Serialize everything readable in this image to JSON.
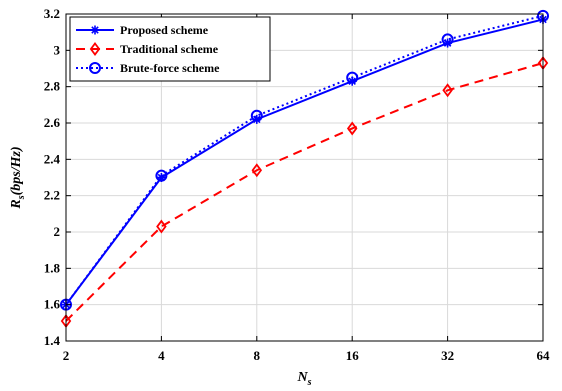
{
  "chart_data": {
    "type": "line",
    "categories": [
      "2",
      "4",
      "8",
      "16",
      "32",
      "64"
    ],
    "x": [
      2,
      4,
      8,
      16,
      32,
      64
    ],
    "x_scale": "log2",
    "series": [
      {
        "name": "Proposed scheme",
        "values": [
          1.6,
          2.3,
          2.62,
          2.83,
          3.04,
          3.17
        ],
        "color": "#0000ff",
        "dash": "solid",
        "marker": "asterisk"
      },
      {
        "name": "Traditional scheme",
        "values": [
          1.51,
          2.03,
          2.34,
          2.57,
          2.78,
          2.93
        ],
        "color": "#ff0000",
        "dash": "dashed",
        "marker": "diamond"
      },
      {
        "name": "Brute-force scheme",
        "values": [
          1.6,
          2.31,
          2.64,
          2.85,
          3.06,
          3.19
        ],
        "color": "#0000ff",
        "dash": "dotted",
        "marker": "circle"
      }
    ],
    "title": "",
    "xlabel_main": "N",
    "xlabel_sub": "s",
    "ylabel_main": "R",
    "ylabel_sub": "s",
    "ylabel_rest": "(bps/Hz)",
    "ylim": [
      1.4,
      3.2
    ],
    "yticks": [
      1.4,
      1.6,
      1.8,
      2,
      2.2,
      2.4,
      2.6,
      2.8,
      3,
      3.2
    ],
    "grid": true,
    "legend_position": "top-left"
  }
}
